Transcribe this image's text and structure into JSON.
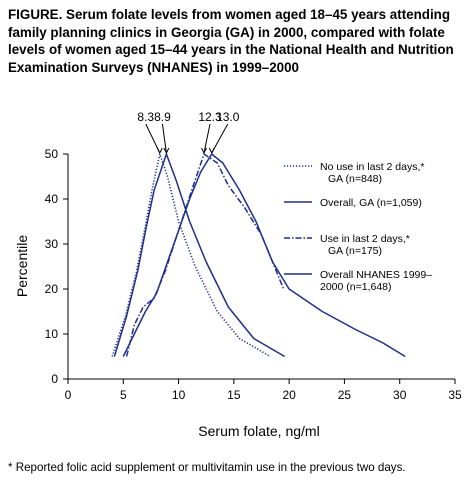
{
  "figure": {
    "title": "FIGURE. Serum folate levels from women aged 18–45 years attending family planning clinics in Georgia (GA) in 2000, compared with folate levels of women aged 15–44 years in the National Health and Nutrition Examination Surveys (NHANES) in 1999–2000",
    "footnote": "* Reported folic acid supplement or multivitamin use in the previous two days."
  },
  "chart_data": {
    "type": "line",
    "xlabel": "Serum folate, ng/ml",
    "ylabel": "Percentile",
    "xlim": [
      0,
      35
    ],
    "ylim": [
      0,
      50
    ],
    "x_ticks": [
      0,
      5,
      10,
      15,
      20,
      25,
      30,
      35
    ],
    "y_ticks": [
      0,
      10,
      20,
      30,
      40,
      50
    ],
    "grid": false,
    "legend_position": "top-right",
    "peak_annotations": [
      {
        "label": "8.3",
        "x": 8.3
      },
      {
        "label": "8.9",
        "x": 8.9
      },
      {
        "label": "12.3",
        "x": 12.3
      },
      {
        "label": "13.0",
        "x": 13.0
      }
    ],
    "series": [
      {
        "name": "No use in last 2 days,*",
        "name_line2": "GA (n=848)",
        "style": "dotted",
        "points": [
          [
            4.0,
            5
          ],
          [
            5.2,
            14
          ],
          [
            6.2,
            24
          ],
          [
            7.0,
            34
          ],
          [
            7.6,
            42
          ],
          [
            8.3,
            50
          ],
          [
            9.0,
            45
          ],
          [
            10.0,
            35
          ],
          [
            11.5,
            25
          ],
          [
            13.5,
            15
          ],
          [
            15.5,
            9
          ],
          [
            18.3,
            5
          ]
        ]
      },
      {
        "name": "Overall, GA (n=1,059)",
        "name_line2": "",
        "style": "solid",
        "points": [
          [
            4.2,
            5
          ],
          [
            5.3,
            14
          ],
          [
            6.3,
            24
          ],
          [
            7.1,
            34
          ],
          [
            7.8,
            42
          ],
          [
            8.9,
            50
          ],
          [
            9.8,
            44
          ],
          [
            11.0,
            35
          ],
          [
            12.5,
            26
          ],
          [
            14.5,
            16
          ],
          [
            16.8,
            9
          ],
          [
            19.6,
            5
          ]
        ]
      },
      {
        "name": "Use in last 2 days,*",
        "name_line2": "GA (n=175)",
        "style": "dashdot",
        "points": [
          [
            5.3,
            5
          ],
          [
            6.0,
            12
          ],
          [
            6.8,
            16
          ],
          [
            7.8,
            18
          ],
          [
            8.8,
            24
          ],
          [
            9.6,
            30
          ],
          [
            10.4,
            36
          ],
          [
            11.2,
            42
          ],
          [
            12.3,
            50
          ],
          [
            13.5,
            48
          ],
          [
            14.5,
            43
          ],
          [
            16.0,
            38
          ],
          [
            17.5,
            32
          ],
          [
            18.5,
            26
          ],
          [
            19.5,
            20
          ]
        ]
      },
      {
        "name": "Overall NHANES 1999–",
        "name_line2": "2000 (n=1,648)",
        "style": "solid",
        "points": [
          [
            5.0,
            5
          ],
          [
            6.0,
            10
          ],
          [
            7.0,
            15
          ],
          [
            8.0,
            19
          ],
          [
            9.0,
            26
          ],
          [
            10.0,
            33
          ],
          [
            11.0,
            40
          ],
          [
            12.0,
            46
          ],
          [
            13.0,
            50
          ],
          [
            14.0,
            48
          ],
          [
            15.5,
            42
          ],
          [
            17.0,
            35
          ],
          [
            18.5,
            26
          ],
          [
            20.0,
            20
          ],
          [
            23.0,
            15
          ],
          [
            26.0,
            11
          ],
          [
            28.5,
            8
          ],
          [
            30.5,
            5
          ]
        ]
      }
    ]
  }
}
